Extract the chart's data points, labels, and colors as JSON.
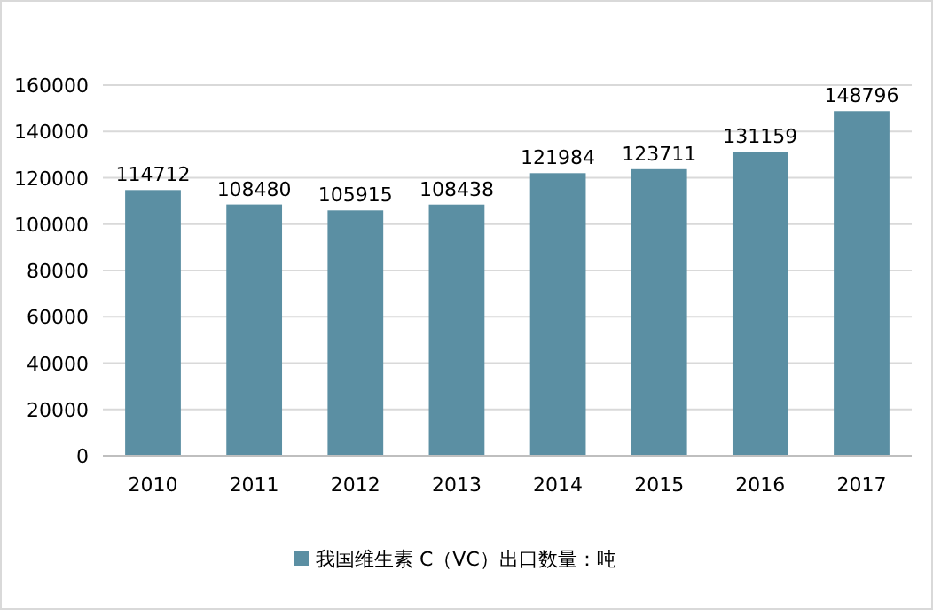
{
  "chart_data": {
    "type": "bar",
    "categories": [
      "2010",
      "2011",
      "2012",
      "2013",
      "2014",
      "2015",
      "2016",
      "2017"
    ],
    "series": [
      {
        "name": "我国维生素 C（VC）出口数量：吨",
        "color": "#5b8fa3",
        "values": [
          114712,
          108480,
          105915,
          108438,
          121984,
          123711,
          131159,
          148796
        ]
      }
    ],
    "ylim": [
      0,
      160000
    ],
    "yticks": [
      0,
      20000,
      40000,
      60000,
      80000,
      100000,
      120000,
      140000,
      160000
    ],
    "grid": "y",
    "data_labels": true,
    "legend": "bottom"
  }
}
